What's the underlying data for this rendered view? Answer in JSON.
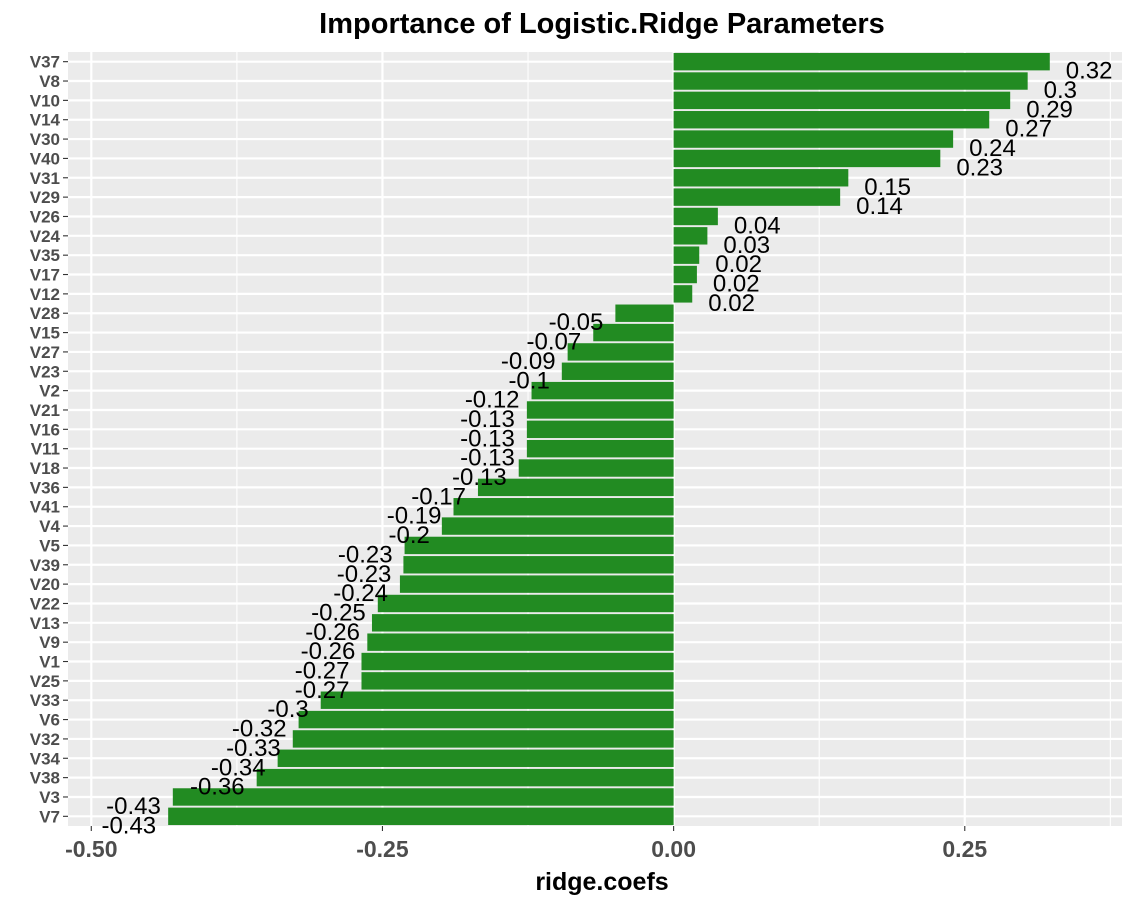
{
  "chart_data": {
    "type": "bar",
    "orientation": "horizontal",
    "title": "Importance of Logistic.Ridge Parameters",
    "xlabel": "ridge.coefs",
    "ylabel": "",
    "xlim": [
      -0.52,
      0.385
    ],
    "xticks": [
      -0.5,
      -0.25,
      0.0,
      0.25
    ],
    "xtick_labels": [
      "-0.50",
      "-0.25",
      "0.00",
      "0.25"
    ],
    "bar_color": "#228B22",
    "panel_background": "#EBEBEB",
    "grid": true,
    "legend": "none",
    "categories": [
      "V37",
      "V8",
      "V10",
      "V14",
      "V30",
      "V40",
      "V31",
      "V29",
      "V26",
      "V24",
      "V35",
      "V17",
      "V12",
      "V28",
      "V15",
      "V27",
      "V23",
      "V2",
      "V21",
      "V16",
      "V11",
      "V18",
      "V36",
      "V41",
      "V4",
      "V5",
      "V39",
      "V20",
      "V22",
      "V13",
      "V9",
      "V1",
      "V25",
      "V33",
      "V6",
      "V32",
      "V34",
      "V38",
      "V3",
      "V7"
    ],
    "values": [
      0.323,
      0.304,
      0.289,
      0.271,
      0.24,
      0.229,
      0.15,
      0.143,
      0.038,
      0.029,
      0.022,
      0.02,
      0.016,
      -0.05,
      -0.069,
      -0.091,
      -0.096,
      -0.122,
      -0.126,
      -0.126,
      -0.126,
      -0.133,
      -0.168,
      -0.189,
      -0.199,
      -0.231,
      -0.232,
      -0.235,
      -0.254,
      -0.259,
      -0.263,
      -0.268,
      -0.268,
      -0.303,
      -0.322,
      -0.327,
      -0.34,
      -0.358,
      -0.43,
      -0.434
    ],
    "labels": [
      "0.32",
      "0.3",
      "0.29",
      "0.27",
      "0.24",
      "0.23",
      "0.15",
      "0.14",
      "0.04",
      "0.03",
      "0.02",
      "0.02",
      "0.02",
      "-0.05",
      "-0.07",
      "-0.09",
      "-0.1",
      "-0.12",
      "-0.13",
      "-0.13",
      "-0.13",
      "-0.13",
      "-0.17",
      "-0.19",
      "-0.2",
      "-0.23",
      "-0.23",
      "-0.24",
      "-0.25",
      "-0.26",
      "-0.26",
      "-0.27",
      "-0.27",
      "-0.3",
      "-0.32",
      "-0.33",
      "-0.34",
      "-0.36",
      "-0.43",
      "-0.43"
    ]
  }
}
